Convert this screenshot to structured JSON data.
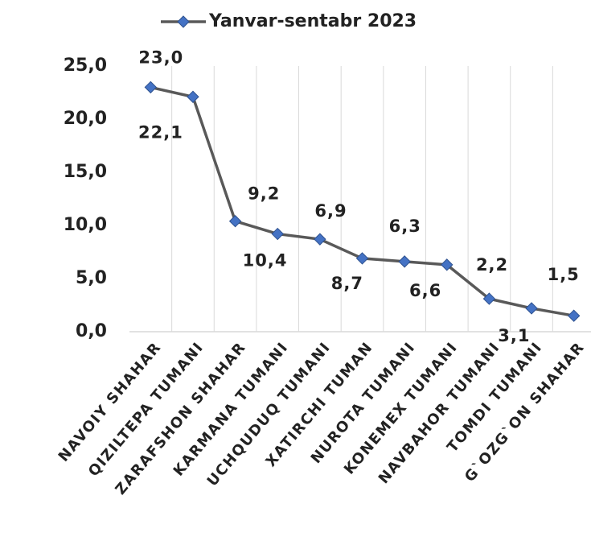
{
  "chart_data": {
    "type": "line",
    "categories": [
      "NAVOIY SHAHAR",
      "QIZILTEPA TUMANI",
      "ZARAFSHON SHAHAR",
      "KARMANA TUMANI",
      "UCHQUDUQ TUMANI",
      "XATIRCHI TUMAN",
      "NUROTA TUMANI",
      "KONEMEX TUMANI",
      "NAVBAHOR TUMANI",
      "TOMDI TUMANI",
      "G`OZG`ON SHAHAR"
    ],
    "series": [
      {
        "name": "Yanvar-sentabr 2023",
        "color": "#4472c4",
        "line_color": "#595959",
        "values": [
          23.0,
          22.1,
          10.4,
          9.2,
          8.7,
          6.9,
          6.6,
          6.3,
          3.1,
          2.2,
          1.5
        ],
        "value_labels": [
          "23,0",
          "22,1",
          "10,4",
          "9,2",
          "8,7",
          "6,9",
          "6,6",
          "6,3",
          "3,1",
          "2,2",
          "1,5"
        ]
      }
    ],
    "ylim": [
      0,
      25
    ],
    "yticks": [
      {
        "value": 0,
        "label": "0,0"
      },
      {
        "value": 5,
        "label": "5,0"
      },
      {
        "value": 10,
        "label": "10,0"
      },
      {
        "value": 15,
        "label": "15,0"
      },
      {
        "value": 20,
        "label": "20,0"
      },
      {
        "value": 25,
        "label": "25,0"
      }
    ],
    "legend": "top"
  }
}
